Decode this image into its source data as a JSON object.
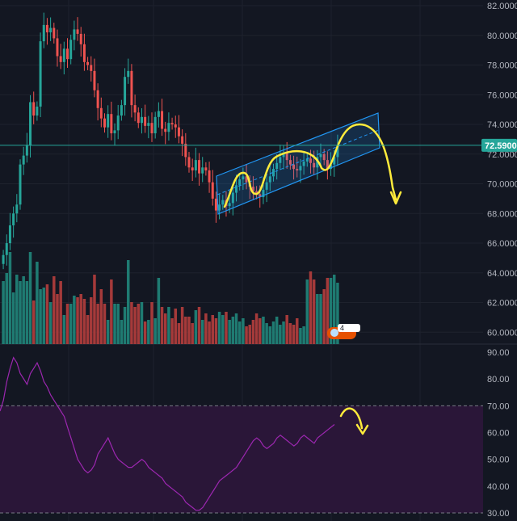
{
  "colors": {
    "background": "#131722",
    "grid": "#1e222d",
    "up": "#26a69a",
    "down": "#ef5350",
    "volume_up": "#1f7b72",
    "volume_down": "#a53a3a",
    "price_line": "#26a69a",
    "channel": "#2196f3",
    "annotation": "#ffeb3b",
    "rsi_line": "#9c27b0",
    "rsi_band": "#2a1638",
    "rsi_level": "#787b86"
  },
  "price_tag": "72.5900",
  "badge_text": "4",
  "chart_data": [
    {
      "type": "candlestick",
      "name": "price",
      "y_ticks": [
        "82.0000",
        "80.0000",
        "78.0000",
        "76.0000",
        "74.0000",
        "72.0000",
        "70.0000",
        "68.0000",
        "66.0000",
        "64.0000",
        "62.0000",
        "60.0000"
      ],
      "ylim": [
        59.2,
        82.0
      ],
      "last_price": 72.59,
      "closes": [
        65.2,
        66.0,
        67.2,
        68.0,
        68.6,
        71.3,
        71.9,
        72.6,
        75.5,
        74.6,
        75.2,
        79.6,
        80.7,
        80.2,
        80.5,
        79.8,
        78.6,
        78.2,
        79.1,
        78.4,
        79.7,
        80.4,
        80.1,
        79.4,
        78.2,
        78.0,
        77.6,
        76.3,
        75.1,
        74.4,
        73.8,
        74.7,
        73.4,
        73.6,
        74.6,
        75.3,
        77.2,
        77.6,
        75.3,
        74.8,
        74.1,
        74.5,
        73.9,
        74.1,
        73.4,
        74.5,
        74.9,
        73.7,
        73.5,
        74.1,
        74.0,
        73.8,
        73.2,
        72.7,
        71.8,
        71.1,
        70.9,
        71.6,
        70.7,
        71.1,
        70.9,
        70.1,
        69.0,
        68.2,
        68.6,
        68.9,
        68.5,
        68.7,
        69.4,
        69.9,
        70.3,
        70.5,
        70.1,
        69.8,
        69.5,
        69.3,
        69.1,
        69.6,
        70.1,
        70.5,
        71.0,
        71.4,
        71.8,
        72.1,
        71.6,
        71.3,
        71.0,
        70.9,
        71.2,
        71.5,
        71.7,
        71.4,
        71.1,
        71.8,
        72.0,
        71.6,
        71.0,
        71.3,
        71.8,
        72.6
      ],
      "volume": [
        3.9,
        4.4,
        5.7,
        3.2,
        4.3,
        3.9,
        4.2,
        3.9,
        5.7,
        2.7,
        5.1,
        3.4,
        3.5,
        3.7,
        2.6,
        4.2,
        3.1,
        3.9,
        1.8,
        2.5,
        2.5,
        3.0,
        2.9,
        3.1,
        2.8,
        1.8,
        2.9,
        4.3,
        2.5,
        3.4,
        2.5,
        1.5,
        4.0,
        2.5,
        2.5,
        1.5,
        2.3,
        5.2,
        2.6,
        2.3,
        2.5,
        2.6,
        1.4,
        1.5,
        2.6,
        1.6,
        4.1,
        2.3,
        1.9,
        2.3,
        1.6,
        2.2,
        1.3,
        2.3,
        1.7,
        1.7,
        1.3,
        2.1,
        2.3,
        1.5,
        1.9,
        1.4,
        1.8,
        1.6,
        2.0,
        1.8,
        2.0,
        1.5,
        1.7,
        1.9,
        1.4,
        1.6,
        1.1,
        1.2,
        1.5,
        1.9,
        1.6,
        1.7,
        1.3,
        1.1,
        1.4,
        1.7,
        1.2,
        1.4,
        1.8,
        1.3,
        1.2,
        1.6,
        1.0,
        1.1,
        4.0,
        4.5,
        4.0,
        3.1,
        3.1,
        3.4,
        4.1,
        4.1,
        4.3,
        3.8
      ]
    },
    {
      "type": "line",
      "name": "rsi",
      "y_ticks": [
        "90.00",
        "80.00",
        "70.00",
        "60.00",
        "50.00",
        "40.00",
        "30.00"
      ],
      "ylim": [
        27.0,
        93.0
      ],
      "levels": [
        70,
        30
      ],
      "values": [
        68,
        72,
        79,
        84,
        88,
        86,
        82,
        80,
        78,
        82,
        84,
        86,
        83,
        79,
        77,
        74,
        72,
        70,
        68,
        66,
        62,
        58,
        54,
        50,
        48,
        46,
        45,
        46,
        48,
        52,
        54,
        56,
        58,
        55,
        52,
        50,
        49,
        48,
        47,
        47,
        48,
        49,
        50,
        49,
        47,
        46,
        45,
        44,
        43,
        41,
        40,
        39,
        38,
        37,
        36,
        34,
        33,
        32,
        31,
        31,
        32,
        34,
        36,
        38,
        40,
        42,
        43,
        44,
        45,
        46,
        47,
        49,
        51,
        53,
        55,
        57,
        58,
        57,
        55,
        54,
        55,
        56,
        58,
        59,
        58,
        57,
        56,
        55,
        56,
        58,
        59,
        58,
        57,
        56,
        58,
        59,
        60,
        61,
        62,
        63
      ]
    }
  ]
}
